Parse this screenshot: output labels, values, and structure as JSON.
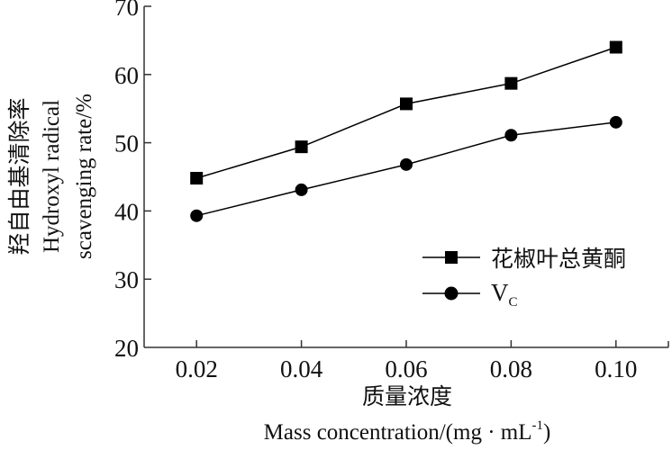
{
  "chart_data": {
    "type": "line",
    "title": "",
    "xlabel_cn": "质量浓度",
    "xlabel_en": "Mass concentration/(mg · mL",
    "xlabel_en_sup": "-1",
    "xlabel_en_end": ")",
    "ylabel_cn": "羟自由基清除率",
    "ylabel_en_line1": "Hydroxyl radical",
    "ylabel_en_line2": "scavenging rate/%",
    "x": [
      0.02,
      0.04,
      0.06,
      0.08,
      0.1
    ],
    "x_tick_labels": [
      "0.02",
      "0.04",
      "0.06",
      "0.08",
      "0.10"
    ],
    "y_ticks": [
      20,
      30,
      40,
      50,
      60,
      70
    ],
    "y_tick_labels": [
      "20",
      "30",
      "40",
      "50",
      "60",
      "70"
    ],
    "xlim": [
      0.01,
      0.11
    ],
    "ylim": [
      20,
      70
    ],
    "grid": false,
    "legend_position": "bottom-right",
    "series": [
      {
        "name": "花椒叶总黄酮",
        "marker": "square",
        "values": [
          44.8,
          49.4,
          55.7,
          58.7,
          64.0
        ]
      },
      {
        "name": "V",
        "name_sub": "C",
        "marker": "circle",
        "values": [
          39.3,
          43.1,
          46.8,
          51.1,
          53.0
        ]
      }
    ],
    "colors": {
      "line": "#000000",
      "axis": "#333333"
    }
  }
}
